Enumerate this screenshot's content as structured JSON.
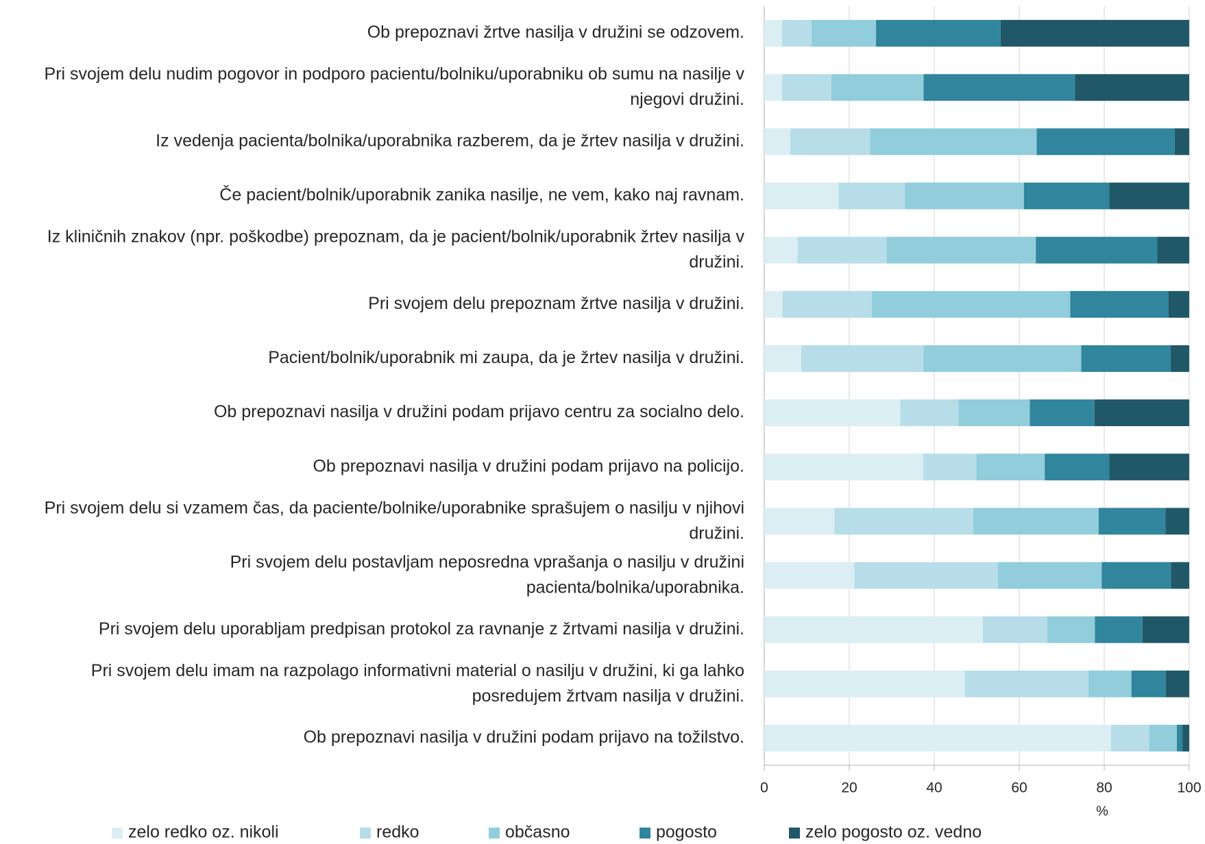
{
  "chart_data": {
    "type": "stacked_barh",
    "x_label": "%",
    "categories": [
      "Ob prepoznavi žrtve nasilja v družini se odzovem.",
      "Pri svojem delu nudim pogovor in podporo pacientu/bolniku/uporabniku ob sumu na nasilje v njegovi družini.",
      "Iz vedenja pacienta/bolnika/uporabnika razberem, da je žrtev nasilja v družini.",
      "Če pacient/bolnik/uporabnik zanika nasilje, ne vem, kako naj ravnam.",
      "Iz kliničnih znakov (npr. poškodbe) prepoznam, da je pacient/bolnik/uporabnik žrtev nasilja v družini.",
      "Pri svojem delu prepoznam žrtve nasilja v družini.",
      "Pacient/bolnik/uporabnik mi zaupa, da je žrtev nasilja v družini.",
      "Ob prepoznavi nasilja v družini podam prijavo centru  za socialno delo.",
      "Ob prepoznavi nasilja v družini podam prijavo na policijo.",
      "Pri svojem delu si vzamem čas, da paciente/bolnike/uporabnike sprašujem o nasilju v njihovi družini.",
      "Pri svojem delu postavljam neposredna vprašanja o nasilju v družini pacienta/bolnika/uporabnika.",
      "Pri svojem delu uporabljam predpisan protokol za ravnanje z žrtvami nasilja v družini.",
      "Pri svojem delu imam na razpolago informativni material o nasilju v družini, ki ga lahko posredujem žrtvam nasilja v družini.",
      "Ob prepoznavi nasilja v družini podam prijavo na tožilstvo."
    ],
    "series": [
      {
        "name": "zelo redko oz. nikoli",
        "color": "#dbeef4",
        "values": [
          4.2,
          4.2,
          6.1,
          17.5,
          7.8,
          4.3,
          8.7,
          32.0,
          37.4,
          16.5,
          21.2,
          51.4,
          47.2,
          81.6
        ]
      },
      {
        "name": "redko",
        "color": "#b7dde8",
        "values": [
          6.9,
          11.6,
          18.8,
          15.6,
          21.0,
          21.0,
          28.8,
          13.7,
          12.5,
          32.7,
          33.8,
          15.2,
          29.1,
          9.0
        ]
      },
      {
        "name": "občasno",
        "color": "#92cddc",
        "values": [
          15.2,
          21.7,
          39.2,
          28.0,
          35.1,
          46.7,
          37.1,
          16.8,
          16.1,
          29.5,
          24.4,
          11.2,
          10.1,
          6.5
        ]
      },
      {
        "name": "pogosto",
        "color": "#31859c",
        "values": [
          29.3,
          35.6,
          32.5,
          20.1,
          28.6,
          23.1,
          21.0,
          15.2,
          15.2,
          15.7,
          16.3,
          11.2,
          8.1,
          1.3
        ]
      },
      {
        "name": "zelo pogosto oz. vedno",
        "color": "#215868",
        "values": [
          44.4,
          26.9,
          3.4,
          18.8,
          7.5,
          4.9,
          4.4,
          22.3,
          18.8,
          5.6,
          4.3,
          11.0,
          5.5,
          1.6
        ]
      }
    ],
    "xlim": [
      0,
      100
    ],
    "xticks": [
      0,
      20,
      40,
      60,
      80,
      100
    ],
    "grid": true
  }
}
